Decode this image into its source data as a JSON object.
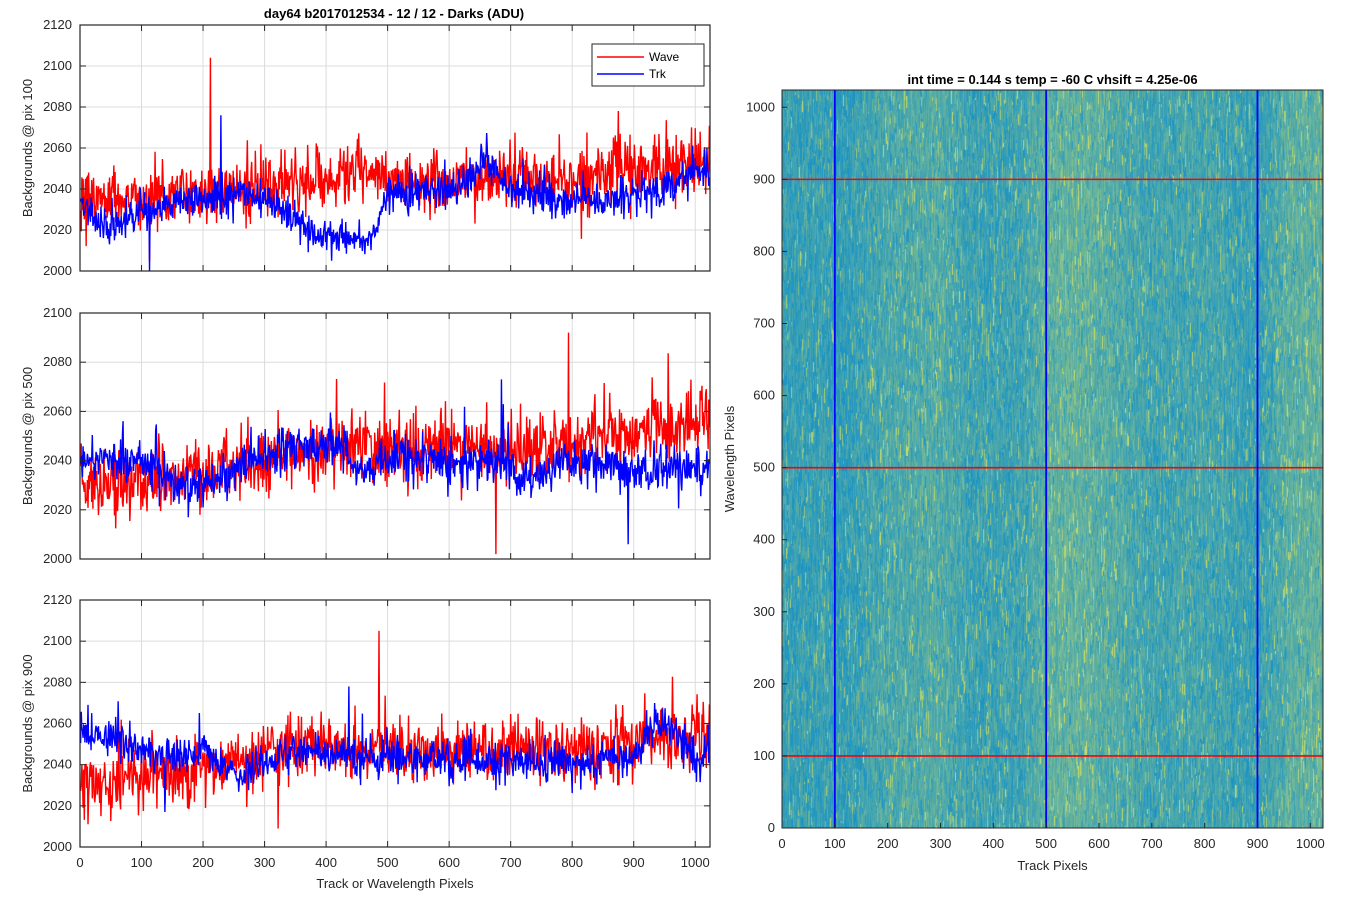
{
  "figure": {
    "suptitle": "day64 b2017012534 - 12 / 12 - Darks (ADU)"
  },
  "chart_data": [
    {
      "type": "line",
      "ylabel": "Backgrounds @ pix 100",
      "xlabel": "",
      "xlim": [
        0,
        1024
      ],
      "ylim": [
        2000,
        2120
      ],
      "xticks": [
        0,
        100,
        200,
        300,
        400,
        500,
        600,
        700,
        800,
        900,
        1000
      ],
      "yticks": [
        2000,
        2020,
        2040,
        2060,
        2080,
        2100,
        2120
      ],
      "grid": true,
      "legend": {
        "placement": "top-right",
        "entries": [
          "Wave",
          "Trk"
        ]
      },
      "series": [
        {
          "name": "Wave",
          "color": "#ff0000",
          "profile": [
            [
              0,
              2035
            ],
            [
              100,
              2036
            ],
            [
              200,
              2038
            ],
            [
              300,
              2041
            ],
            [
              400,
              2043
            ],
            [
              450,
              2050
            ],
            [
              500,
              2043
            ],
            [
              600,
              2044
            ],
            [
              700,
              2045
            ],
            [
              800,
              2044
            ],
            [
              900,
              2048
            ],
            [
              1000,
              2054
            ],
            [
              1024,
              2054
            ]
          ],
          "noise": 10,
          "max": 2104,
          "min": 2005
        },
        {
          "name": "Trk",
          "color": "#0000ff",
          "profile": [
            [
              0,
              2033
            ],
            [
              40,
              2020
            ],
            [
              80,
              2026
            ],
            [
              150,
              2033
            ],
            [
              200,
              2036
            ],
            [
              280,
              2038
            ],
            [
              330,
              2030
            ],
            [
              380,
              2018
            ],
            [
              470,
              2015
            ],
            [
              500,
              2038
            ],
            [
              560,
              2040
            ],
            [
              620,
              2040
            ],
            [
              660,
              2056
            ],
            [
              700,
              2038
            ],
            [
              800,
              2034
            ],
            [
              900,
              2036
            ],
            [
              960,
              2042
            ],
            [
              1000,
              2050
            ],
            [
              1024,
              2047
            ]
          ],
          "noise": 6,
          "max": 2076,
          "min": 2000
        }
      ]
    },
    {
      "type": "line",
      "ylabel": "Backgrounds @ pix 500",
      "xlabel": "",
      "xlim": [
        0,
        1024
      ],
      "ylim": [
        2000,
        2100
      ],
      "xticks": [
        0,
        100,
        200,
        300,
        400,
        500,
        600,
        700,
        800,
        900,
        1000
      ],
      "yticks": [
        2000,
        2020,
        2040,
        2060,
        2080,
        2100
      ],
      "grid": true,
      "series": [
        {
          "name": "Wave",
          "color": "#ff0000",
          "profile": [
            [
              0,
              2032
            ],
            [
              100,
              2032
            ],
            [
              200,
              2034
            ],
            [
              300,
              2040
            ],
            [
              400,
              2046
            ],
            [
              500,
              2045
            ],
            [
              600,
              2045
            ],
            [
              700,
              2045
            ],
            [
              800,
              2047
            ],
            [
              900,
              2052
            ],
            [
              1000,
              2055
            ],
            [
              1024,
              2055
            ]
          ],
          "noise": 9,
          "max": 2092,
          "min": 2002
        },
        {
          "name": "Trk",
          "color": "#0000ff",
          "profile": [
            [
              0,
              2040
            ],
            [
              100,
              2040
            ],
            [
              170,
              2028
            ],
            [
              200,
              2030
            ],
            [
              280,
              2040
            ],
            [
              350,
              2046
            ],
            [
              420,
              2045
            ],
            [
              470,
              2036
            ],
            [
              520,
              2042
            ],
            [
              600,
              2038
            ],
            [
              680,
              2040
            ],
            [
              720,
              2032
            ],
            [
              800,
              2038
            ],
            [
              900,
              2036
            ],
            [
              1000,
              2036
            ],
            [
              1024,
              2038
            ]
          ],
          "noise": 6,
          "max": 2073,
          "min": 2006
        }
      ]
    },
    {
      "type": "line",
      "ylabel": "Backgrounds @ pix 900",
      "xlabel": "Track or Wavelength Pixels",
      "xlim": [
        0,
        1024
      ],
      "ylim": [
        2000,
        2120
      ],
      "xticks": [
        0,
        100,
        200,
        300,
        400,
        500,
        600,
        700,
        800,
        900,
        1000
      ],
      "yticks": [
        2000,
        2020,
        2040,
        2060,
        2080,
        2100,
        2120
      ],
      "grid": true,
      "series": [
        {
          "name": "Wave",
          "color": "#ff0000",
          "profile": [
            [
              0,
              2030
            ],
            [
              100,
              2034
            ],
            [
              200,
              2036
            ],
            [
              300,
              2046
            ],
            [
              400,
              2050
            ],
            [
              500,
              2048
            ],
            [
              600,
              2046
            ],
            [
              700,
              2047
            ],
            [
              800,
              2046
            ],
            [
              900,
              2050
            ],
            [
              1000,
              2055
            ],
            [
              1024,
              2055
            ]
          ],
          "noise": 10,
          "max": 2105,
          "min": 2009
        },
        {
          "name": "Trk",
          "color": "#0000ff",
          "profile": [
            [
              0,
              2055
            ],
            [
              60,
              2052
            ],
            [
              120,
              2044
            ],
            [
              200,
              2046
            ],
            [
              260,
              2034
            ],
            [
              300,
              2040
            ],
            [
              350,
              2048
            ],
            [
              400,
              2044
            ],
            [
              500,
              2044
            ],
            [
              600,
              2042
            ],
            [
              700,
              2042
            ],
            [
              800,
              2040
            ],
            [
              900,
              2044
            ],
            [
              940,
              2060
            ],
            [
              960,
              2060
            ],
            [
              1000,
              2042
            ],
            [
              1024,
              2048
            ]
          ],
          "noise": 6,
          "max": 2078,
          "min": 2017
        }
      ]
    },
    {
      "type": "heatmap",
      "title": "int time = 0.144 s   temp = -60 C   vhsift = 4.25e-06",
      "xlabel": "Track Pixels",
      "ylabel": "Wavelength Pixels",
      "xlim": [
        0,
        1024
      ],
      "ylim": [
        0,
        1024
      ],
      "xticks": [
        0,
        100,
        200,
        300,
        400,
        500,
        600,
        700,
        800,
        900,
        1000
      ],
      "yticks": [
        0,
        100,
        200,
        300,
        400,
        500,
        600,
        700,
        800,
        900,
        1000
      ],
      "colormap": {
        "low": "#1b93c4",
        "high": "#c9dd6b"
      },
      "brightness_profile": [
        [
          0,
          0.15
        ],
        [
          80,
          0.18
        ],
        [
          100,
          0.1
        ],
        [
          200,
          0.28
        ],
        [
          300,
          0.32
        ],
        [
          350,
          0.2
        ],
        [
          450,
          0.2
        ],
        [
          500,
          0.38
        ],
        [
          560,
          0.42
        ],
        [
          650,
          0.28
        ],
        [
          700,
          0.22
        ],
        [
          800,
          0.24
        ],
        [
          900,
          0.16
        ],
        [
          960,
          0.36
        ],
        [
          1024,
          0.4
        ]
      ],
      "vertical_markers": {
        "color": "#0000ff",
        "x": [
          100,
          500,
          900
        ]
      },
      "horizontal_markers": {
        "color": "#ff0000",
        "y": [
          100,
          500,
          900
        ]
      }
    }
  ]
}
